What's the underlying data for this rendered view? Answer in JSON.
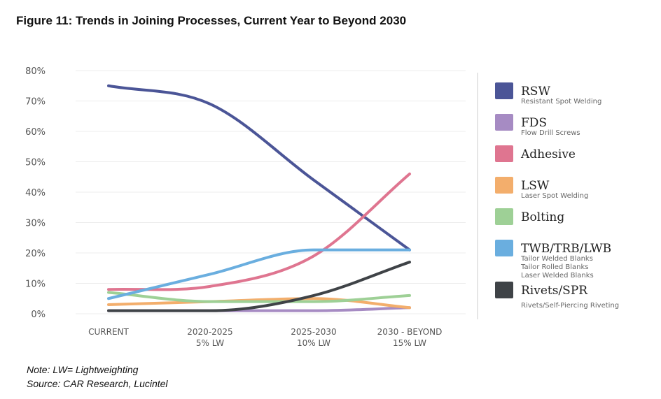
{
  "figure": {
    "title": "Figure 11: Trends in Joining Processes, Current Year to Beyond 2030",
    "note": "Note: LW= Lightweighting",
    "source": "Source: CAR Research, Lucintel"
  },
  "chart_data": {
    "type": "line",
    "title": "Figure 11: Trends in Joining Processes, Current Year to Beyond 2030",
    "xlabel": "",
    "ylabel": "",
    "ylim": [
      0,
      80
    ],
    "yticks": [
      "0%",
      "10%",
      "20%",
      "30%",
      "40%",
      "50%",
      "60%",
      "70%",
      "80%"
    ],
    "categories": [
      {
        "label": "CURRENT",
        "sub": ""
      },
      {
        "label": "2020-2025",
        "sub": "5% LW"
      },
      {
        "label": "2025-2030",
        "sub": "10% LW"
      },
      {
        "label": "2030 - BEYOND",
        "sub": "15% LW"
      }
    ],
    "legend_position": "right",
    "series": [
      {
        "name": "RSW",
        "desc": [
          "Resistant Spot Welding"
        ],
        "color": "#4b5597",
        "values": [
          75,
          69,
          44,
          21
        ]
      },
      {
        "name": "FDS",
        "desc": [
          "Flow Drill Screws"
        ],
        "color": "#a68bc3",
        "values": [
          1,
          1,
          1,
          2
        ]
      },
      {
        "name": "Adhesive",
        "desc": [],
        "color": "#df7590",
        "values": [
          8,
          9,
          19,
          46
        ]
      },
      {
        "name": "LSW",
        "desc": [
          "Laser Spot Welding"
        ],
        "color": "#f3ae6c",
        "values": [
          3,
          4,
          5,
          2
        ]
      },
      {
        "name": "Bolting",
        "desc": [],
        "color": "#9ed096",
        "values": [
          7,
          4,
          4,
          6
        ]
      },
      {
        "name": "TWB/TRB/LWB",
        "desc": [
          "Tailor Welded Blanks",
          "Tailor Rolled Blanks",
          "Laser Welded Blanks"
        ],
        "color": "#6aaedf",
        "values": [
          5,
          13,
          21,
          21
        ]
      },
      {
        "name": "Rivets/SPR",
        "desc": [
          "Rivets/Self-Piercing Riveting"
        ],
        "color": "#3f4347",
        "values": [
          1,
          1,
          6,
          17
        ]
      }
    ]
  }
}
